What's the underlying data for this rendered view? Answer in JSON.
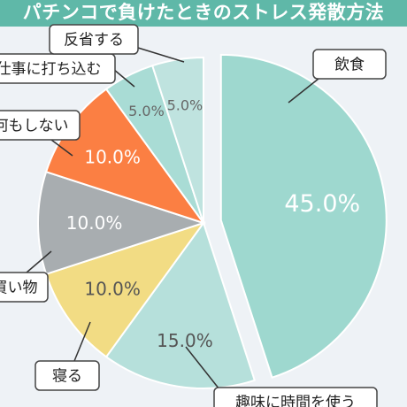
{
  "title": "パチンコで負けたときのストレス発散方法",
  "colors": {
    "title_bg": "#5fb8a8",
    "title_text": "#ffffff",
    "background": "#eef2f6"
  },
  "chart_data": {
    "type": "pie",
    "title": "パチンコで負けたときのストレス発散方法",
    "start_angle": "12 o'clock",
    "direction": "clockwise",
    "exploded_slice": "飲食",
    "slices": [
      {
        "label": "飲食",
        "value": 45.0,
        "value_label": "45.0%",
        "color": "#9ed8cf",
        "text_color": "#ffffff"
      },
      {
        "label": "趣味に時間を使う",
        "value": 15.0,
        "value_label": "15.0%",
        "color": "#b6e0db",
        "text_color": "#555555"
      },
      {
        "label": "寝る",
        "value": 10.0,
        "value_label": "10.0%",
        "color": "#f2dc84",
        "text_color": "#555555"
      },
      {
        "label": "買い物",
        "value": 10.0,
        "value_label": "10.0%",
        "color": "#a8adb0",
        "text_color": "#ffffff"
      },
      {
        "label": "何もしない",
        "value": 10.0,
        "value_label": "10.0%",
        "color": "#fb7f43",
        "text_color": "#ffffff"
      },
      {
        "label": "仕事に打ち込む",
        "value": 5.0,
        "value_label": "5.0%",
        "color": "#a9dcd5",
        "text_color": "#666666"
      },
      {
        "label": "反省する",
        "value": 5.0,
        "value_label": "5.0%",
        "color": "#bfe3df",
        "text_color": "#666666"
      }
    ]
  }
}
